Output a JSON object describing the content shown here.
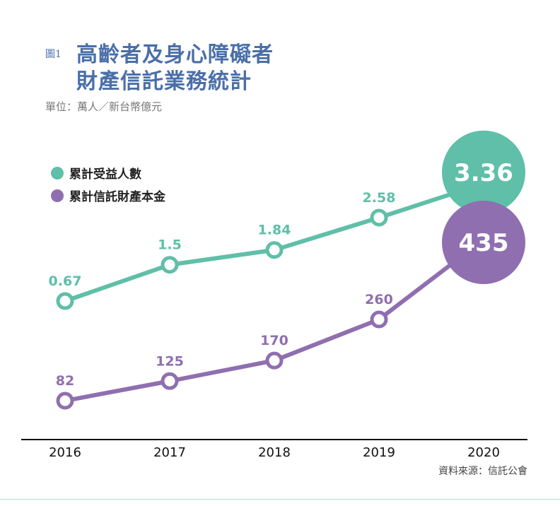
{
  "figure_label": "圖1",
  "title_line1": "高齡者及身心障礙者",
  "title_line2": "財產信託業務統計",
  "unit": "單位：萬人／新台幣億元",
  "source": "資料來源：信託公會",
  "chart_data": {
    "type": "line",
    "categories": [
      "2016",
      "2017",
      "2018",
      "2019",
      "2020"
    ],
    "series": [
      {
        "name": "累計受益人數",
        "values": [
          0.67,
          1.5,
          1.84,
          2.58,
          3.36
        ],
        "color": "#5fbfa8"
      },
      {
        "name": "累計信託財產本金",
        "values": [
          82,
          125,
          170,
          260,
          435
        ],
        "color": "#8f6fb0"
      }
    ],
    "legend": "top-left",
    "grid": false
  }
}
